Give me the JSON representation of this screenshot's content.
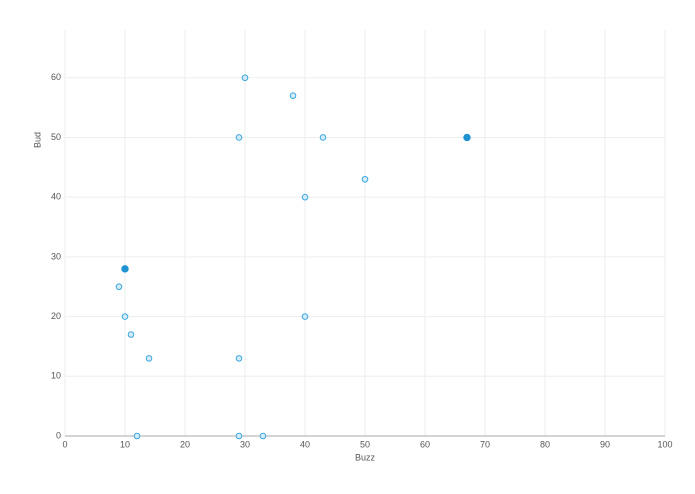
{
  "chart_data": {
    "type": "scatter",
    "x_label": "Buzz",
    "y_label": "Bud",
    "xlim": [
      0,
      100
    ],
    "xticks": [
      0,
      10,
      20,
      30,
      40,
      50,
      60,
      70,
      80,
      90,
      100
    ],
    "ylim": [
      0,
      68
    ],
    "yticks": [
      0,
      10,
      20,
      30,
      40,
      50,
      60
    ],
    "grid": true,
    "series": [
      {
        "color": "#3ba7e0",
        "filled": false,
        "x": [
          30,
          38,
          29,
          43,
          50,
          40,
          9,
          10,
          40,
          11,
          14,
          29,
          12,
          29,
          33
        ],
        "values": [
          60,
          57,
          50,
          50,
          43,
          40,
          25,
          20,
          20,
          17,
          13,
          13,
          0,
          0,
          0
        ]
      },
      {
        "color": "#1f93d1",
        "filled": true,
        "x": [
          67,
          10
        ],
        "values": [
          50,
          28
        ]
      }
    ]
  }
}
